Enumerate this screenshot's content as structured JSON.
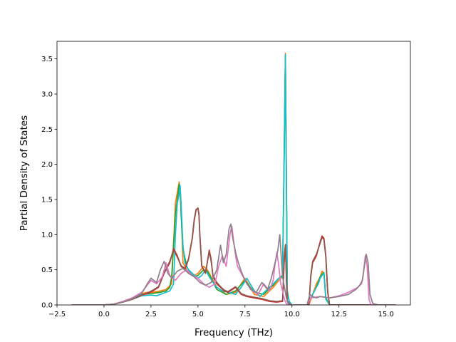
{
  "chart_data": {
    "type": "line",
    "title": "",
    "xlabel": "Frequency (THz)",
    "ylabel": "Partial Density of States",
    "xlim": [
      -2.5,
      16.3
    ],
    "ylim": [
      0,
      3.75
    ],
    "xticks": [
      -2.5,
      0.0,
      2.5,
      5.0,
      7.5,
      10.0,
      12.5,
      15.0
    ],
    "xtick_labels": [
      "−2.5",
      "0.0",
      "2.5",
      "5.0",
      "7.5",
      "10.0",
      "12.5",
      "15.0"
    ],
    "yticks": [
      0.0,
      0.5,
      1.0,
      1.5,
      2.0,
      2.5,
      3.0,
      3.5
    ],
    "ytick_labels": [
      "0.0",
      "0.5",
      "1.0",
      "1.5",
      "2.0",
      "2.5",
      "3.0",
      "3.5"
    ],
    "grid": false,
    "legend": "none",
    "series": [
      {
        "color": "#ff7f0e",
        "x": [
          -1.7,
          0.0,
          0.5,
          1.0,
          1.5,
          2.0,
          2.3,
          2.6,
          3.0,
          3.3,
          3.6,
          3.8,
          3.9,
          4.0,
          4.1,
          4.2,
          4.5,
          4.8,
          5.0,
          5.3,
          5.5,
          5.8,
          6.0,
          6.3,
          6.5,
          7.0,
          7.5,
          8.0,
          8.5,
          9.0,
          9.3,
          9.5,
          9.6,
          9.65,
          9.7,
          9.75,
          9.85,
          10.0,
          10.3,
          10.6,
          10.9,
          11.1,
          11.3,
          11.5,
          11.6,
          11.7,
          11.8,
          12.0,
          12.5,
          13.0,
          13.5,
          14.0,
          14.5,
          15.0,
          15.5
        ],
        "y": [
          0,
          0,
          0.01,
          0.05,
          0.1,
          0.16,
          0.18,
          0.18,
          0.2,
          0.22,
          0.3,
          1.45,
          1.6,
          1.75,
          1.4,
          0.6,
          0.45,
          0.42,
          0.45,
          0.55,
          0.5,
          0.35,
          0.25,
          0.2,
          0.15,
          0.18,
          0.38,
          0.15,
          0.12,
          0.25,
          0.35,
          0.4,
          2.5,
          3.58,
          2.0,
          0.2,
          0.05,
          0,
          0,
          0,
          0,
          0.15,
          0.3,
          0.4,
          0.48,
          0.45,
          0.1,
          0,
          0,
          0,
          0,
          0,
          0,
          0,
          0
        ]
      },
      {
        "color": "#2ca02c",
        "x": [
          -1.7,
          0.0,
          0.5,
          1.0,
          1.5,
          2.0,
          2.5,
          3.0,
          3.3,
          3.5,
          3.6,
          3.8,
          3.9,
          4.0,
          4.05,
          4.1,
          4.2,
          4.4,
          4.6,
          4.8,
          5.0,
          5.3,
          5.5,
          5.8,
          6.0,
          6.3,
          6.5,
          7.0,
          7.5,
          8.0,
          8.5,
          9.0,
          9.3,
          9.5,
          9.6,
          9.65,
          9.7,
          9.75,
          9.85,
          10.0,
          10.5,
          10.8,
          11.0,
          11.2,
          11.4,
          11.5,
          11.6,
          11.7,
          11.8,
          12.0,
          12.5,
          13.0,
          14.0,
          15.5
        ],
        "y": [
          0,
          0,
          0.01,
          0.04,
          0.09,
          0.15,
          0.16,
          0.18,
          0.2,
          0.25,
          0.4,
          1.3,
          1.5,
          1.72,
          1.65,
          1.3,
          0.8,
          0.55,
          0.45,
          0.4,
          0.42,
          0.5,
          0.48,
          0.33,
          0.22,
          0.18,
          0.15,
          0.2,
          0.35,
          0.18,
          0.15,
          0.28,
          0.38,
          0.42,
          2.4,
          3.55,
          1.9,
          0.2,
          0.05,
          0,
          0,
          0,
          0.1,
          0.2,
          0.32,
          0.4,
          0.44,
          0.46,
          0.1,
          0,
          0,
          0,
          0,
          0
        ]
      },
      {
        "color": "#17becf",
        "x": [
          -1.7,
          0.0,
          0.5,
          1.0,
          1.5,
          2.0,
          2.5,
          2.8,
          3.0,
          3.3,
          3.5,
          3.7,
          3.8,
          3.9,
          4.0,
          4.05,
          4.1,
          4.2,
          4.3,
          4.5,
          4.7,
          5.0,
          5.2,
          5.4,
          5.6,
          5.8,
          6.0,
          6.3,
          6.6,
          7.0,
          7.3,
          7.6,
          8.0,
          8.3,
          8.6,
          9.0,
          9.3,
          9.5,
          9.6,
          9.65,
          9.7,
          9.75,
          9.85,
          10.0,
          10.5,
          10.8,
          11.0,
          11.2,
          11.4,
          11.5,
          11.6,
          11.7,
          11.8,
          12.0,
          13.0,
          14.0,
          15.5
        ],
        "y": [
          0,
          0,
          0.01,
          0.04,
          0.08,
          0.13,
          0.14,
          0.13,
          0.15,
          0.18,
          0.2,
          0.3,
          1.0,
          1.45,
          1.58,
          1.7,
          1.45,
          0.85,
          0.6,
          0.5,
          0.45,
          0.38,
          0.42,
          0.5,
          0.4,
          0.32,
          0.25,
          0.2,
          0.18,
          0.15,
          0.25,
          0.38,
          0.2,
          0.12,
          0.2,
          0.3,
          0.38,
          0.4,
          2.45,
          3.56,
          1.8,
          0.18,
          0.05,
          0,
          0,
          0,
          0.1,
          0.2,
          0.3,
          0.38,
          0.42,
          0.45,
          0.08,
          0,
          0,
          0,
          0
        ]
      },
      {
        "color": "#d62728",
        "x": [
          -1.7,
          0.0,
          0.5,
          1.0,
          1.5,
          2.0,
          2.3,
          2.6,
          2.9,
          3.2,
          3.5,
          3.7,
          3.9,
          4.1,
          4.3,
          4.5,
          4.7,
          4.8,
          4.9,
          5.0,
          5.05,
          5.1,
          5.2,
          5.4,
          5.6,
          5.7,
          5.8,
          6.0,
          6.2,
          6.4,
          6.6,
          7.0,
          7.3,
          7.6,
          8.0,
          8.4,
          8.8,
          9.2,
          9.5,
          9.6,
          9.65,
          9.7,
          9.75,
          9.85,
          10.0,
          10.3,
          10.6,
          10.9,
          11.0,
          11.1,
          11.3,
          11.5,
          11.6,
          11.7,
          11.8,
          11.9,
          12.0,
          12.5,
          13.0,
          14.0,
          15.5
        ],
        "y": [
          0,
          0,
          0.01,
          0.04,
          0.08,
          0.14,
          0.16,
          0.2,
          0.25,
          0.45,
          0.6,
          0.8,
          0.7,
          0.55,
          0.5,
          0.65,
          0.95,
          1.2,
          1.35,
          1.38,
          1.3,
          1.0,
          0.55,
          0.45,
          0.78,
          0.65,
          0.4,
          0.3,
          0.25,
          0.2,
          0.18,
          0.25,
          0.15,
          0.12,
          0.1,
          0.08,
          0.05,
          0.04,
          0.05,
          0.7,
          0.85,
          0.4,
          0.05,
          0.02,
          0,
          0,
          0,
          0,
          0.4,
          0.6,
          0.7,
          0.9,
          0.98,
          0.95,
          0.7,
          0.2,
          0,
          0,
          0,
          0,
          0
        ]
      },
      {
        "color": "#8c564b",
        "x": [
          -1.7,
          0.0,
          0.5,
          1.0,
          1.5,
          2.0,
          2.3,
          2.6,
          2.9,
          3.2,
          3.5,
          3.7,
          3.9,
          4.1,
          4.3,
          4.5,
          4.7,
          4.8,
          4.9,
          5.0,
          5.05,
          5.1,
          5.2,
          5.4,
          5.6,
          5.7,
          5.8,
          6.0,
          6.2,
          6.4,
          6.6,
          7.0,
          7.3,
          7.6,
          8.0,
          8.4,
          8.8,
          9.2,
          9.5,
          9.6,
          9.65,
          9.7,
          9.75,
          9.85,
          10.0,
          10.3,
          10.6,
          10.9,
          11.0,
          11.1,
          11.3,
          11.5,
          11.6,
          11.7,
          11.8,
          11.9,
          12.0,
          12.5,
          13.0,
          14.0,
          15.5
        ],
        "y": [
          0,
          0,
          0.01,
          0.04,
          0.08,
          0.14,
          0.17,
          0.21,
          0.26,
          0.46,
          0.62,
          0.78,
          0.68,
          0.56,
          0.52,
          0.66,
          0.96,
          1.22,
          1.36,
          1.37,
          1.28,
          0.98,
          0.56,
          0.46,
          0.76,
          0.62,
          0.42,
          0.32,
          0.26,
          0.21,
          0.19,
          0.26,
          0.16,
          0.13,
          0.11,
          0.09,
          0.06,
          0.05,
          0.06,
          0.72,
          0.86,
          0.42,
          0.06,
          0.02,
          0,
          0,
          0,
          0,
          0.42,
          0.62,
          0.72,
          0.88,
          0.96,
          0.93,
          0.68,
          0.18,
          0,
          0,
          0,
          0,
          0
        ]
      },
      {
        "color": "#e377c2",
        "x": [
          -1.7,
          0.0,
          0.5,
          1.0,
          1.5,
          2.0,
          2.3,
          2.5,
          2.8,
          3.1,
          3.3,
          3.5,
          3.8,
          4.1,
          4.4,
          4.7,
          5.0,
          5.3,
          5.6,
          5.9,
          6.1,
          6.3,
          6.5,
          6.7,
          6.8,
          6.9,
          7.0,
          7.1,
          7.3,
          7.6,
          7.9,
          8.2,
          8.5,
          8.8,
          9.0,
          9.1,
          9.2,
          9.3,
          9.4,
          9.5,
          9.6,
          9.7,
          9.8,
          10.0,
          10.5,
          10.8,
          11.0,
          11.5,
          12.0,
          12.5,
          13.0,
          13.5,
          13.7,
          13.8,
          13.9,
          14.0,
          14.1,
          14.2,
          14.5,
          15.0,
          15.5
        ],
        "y": [
          0,
          0,
          0.01,
          0.05,
          0.1,
          0.18,
          0.28,
          0.35,
          0.3,
          0.4,
          0.6,
          0.42,
          0.35,
          0.45,
          0.5,
          0.42,
          0.38,
          0.3,
          0.25,
          0.3,
          0.55,
          0.7,
          0.55,
          1.0,
          1.12,
          0.9,
          0.7,
          0.55,
          0.45,
          0.3,
          0.2,
          0.15,
          0.3,
          0.2,
          0.35,
          0.58,
          0.75,
          0.55,
          0.3,
          0.2,
          0.08,
          0.02,
          0,
          0,
          0,
          0,
          0.1,
          0.12,
          0.1,
          0.13,
          0.18,
          0.25,
          0.3,
          0.45,
          0.7,
          0.55,
          0.08,
          0,
          0,
          0,
          0
        ]
      },
      {
        "color": "#8e7f88",
        "x": [
          -1.7,
          0.0,
          0.5,
          1.0,
          1.5,
          2.0,
          2.3,
          2.5,
          2.8,
          3.0,
          3.2,
          3.4,
          3.6,
          3.9,
          4.2,
          4.5,
          4.8,
          5.1,
          5.4,
          5.7,
          6.0,
          6.2,
          6.35,
          6.5,
          6.65,
          6.75,
          6.85,
          7.0,
          7.15,
          7.3,
          7.5,
          7.8,
          8.1,
          8.4,
          8.7,
          8.9,
          9.1,
          9.25,
          9.35,
          9.5,
          9.6,
          9.7,
          9.8,
          10.0,
          10.5,
          10.8,
          10.95,
          11.1,
          11.3,
          11.5,
          12.0,
          12.5,
          13.0,
          13.4,
          13.6,
          13.75,
          13.85,
          13.95,
          14.05,
          14.15,
          14.3,
          14.6,
          15.0,
          15.5
        ],
        "y": [
          0,
          0,
          0.01,
          0.04,
          0.09,
          0.16,
          0.3,
          0.38,
          0.32,
          0.5,
          0.62,
          0.45,
          0.38,
          0.48,
          0.52,
          0.45,
          0.4,
          0.32,
          0.28,
          0.32,
          0.5,
          0.85,
          0.6,
          0.72,
          1.08,
          1.15,
          0.95,
          0.75,
          0.6,
          0.48,
          0.35,
          0.22,
          0.18,
          0.32,
          0.22,
          0.38,
          0.6,
          0.78,
          1.0,
          0.4,
          0.25,
          0.1,
          0.02,
          0,
          0,
          0,
          0.15,
          0.12,
          0.1,
          0.12,
          0.1,
          0.12,
          0.15,
          0.22,
          0.28,
          0.35,
          0.55,
          0.72,
          0.6,
          0.15,
          0.02,
          0,
          0,
          0
        ]
      }
    ]
  }
}
